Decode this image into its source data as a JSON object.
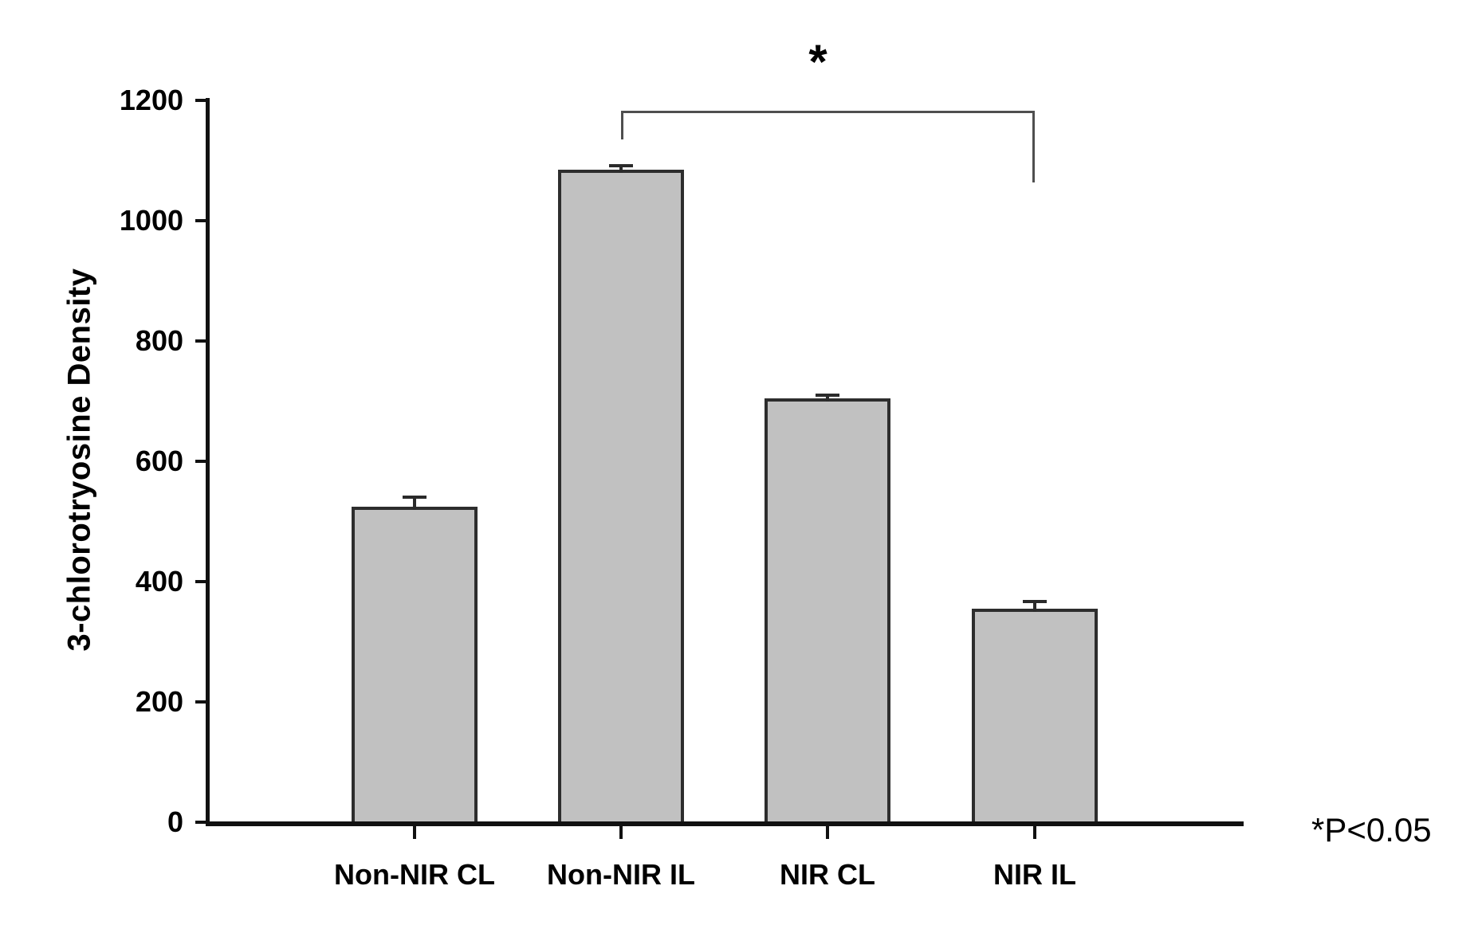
{
  "chart_data": {
    "type": "bar",
    "title": "",
    "xlabel": "",
    "ylabel": "3-chlorotryosine Density",
    "categories": [
      "Non-NIR CL",
      "Non-NIR IL",
      "NIR CL",
      "NIR IL"
    ],
    "values": [
      525,
      1085,
      705,
      355
    ],
    "errors": [
      15,
      7,
      5,
      12
    ],
    "ylim": [
      0,
      1200
    ],
    "yticks": [
      0,
      200,
      400,
      600,
      800,
      1000,
      1200
    ],
    "grid": false,
    "legend": false,
    "bar_color": "#c1c1c1",
    "bar_border_color": "#2d2d2d",
    "error_bar_color": "#2a2a2a",
    "axis_color": "#111111",
    "bracket_color": "#4f4f4f",
    "significance": {
      "label": "*",
      "from_index": 1,
      "to_index": 3
    },
    "annotation": "*P<0.05"
  }
}
